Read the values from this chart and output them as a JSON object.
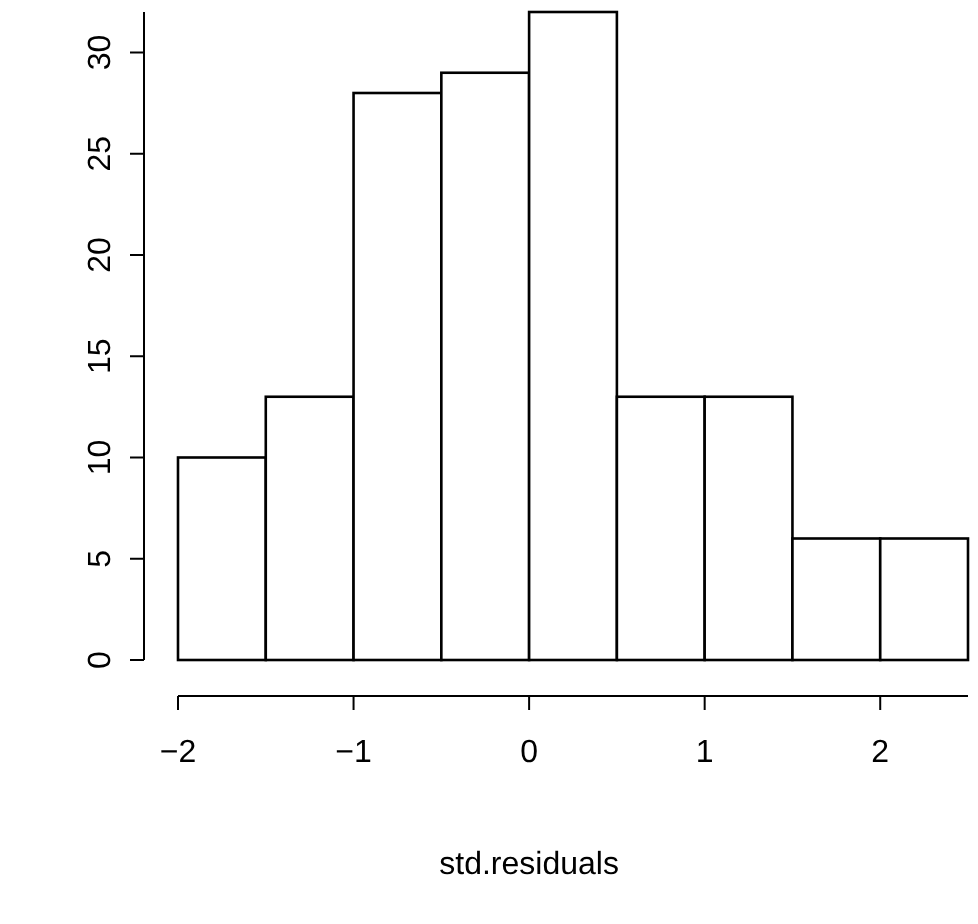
{
  "chart_data": {
    "type": "histogram",
    "xlabel": "std.residuals",
    "bins": [
      -2,
      -1.5,
      -1,
      -0.5,
      0,
      0.5,
      1,
      1.5,
      2,
      2.5
    ],
    "values": [
      10,
      13,
      28,
      29,
      32,
      13,
      13,
      6,
      6
    ],
    "color": "#ffffff",
    "xlim": [
      -2,
      2.5
    ],
    "ylim": [
      0,
      32
    ],
    "xticks": [
      {
        "value": -2,
        "label": "−2"
      },
      {
        "value": -1,
        "label": "−1"
      },
      0,
      1,
      2
    ],
    "yticks": [
      0,
      5,
      10,
      15,
      20,
      25,
      30
    ],
    "grid": false
  }
}
